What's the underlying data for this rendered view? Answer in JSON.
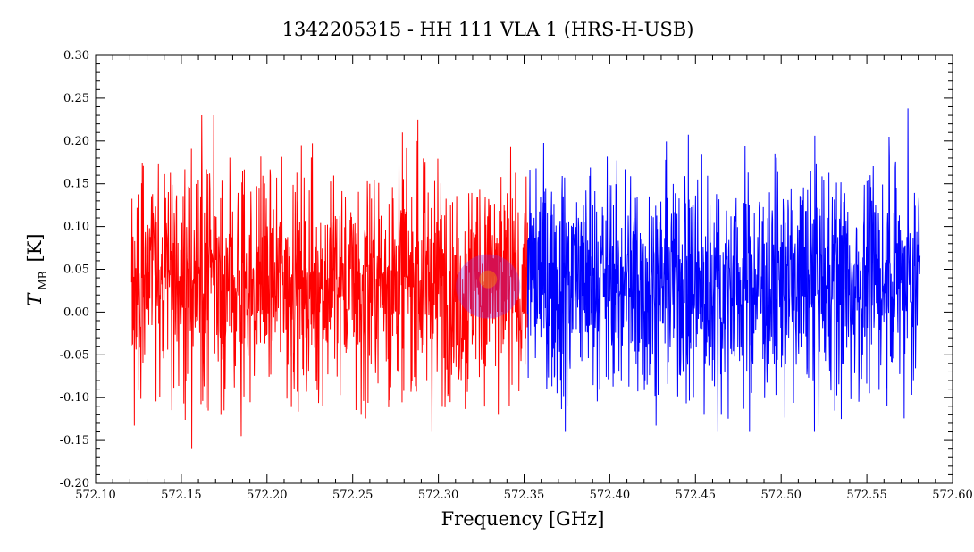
{
  "chart_data": {
    "type": "line",
    "title": "1342205315 - HH 111 VLA 1 (HRS-H-USB)",
    "xlabel": "Frequency [GHz]",
    "ylabel_main": "T",
    "ylabel_sub": "MB",
    "ylabel_unit": "[K]",
    "xlim": [
      572.1,
      572.6
    ],
    "ylim": [
      -0.2,
      0.3
    ],
    "x_ticks": [
      "572.10",
      "572.15",
      "572.20",
      "572.25",
      "572.30",
      "572.35",
      "572.40",
      "572.45",
      "572.50",
      "572.55",
      "572.60"
    ],
    "y_ticks": [
      "0.30",
      "0.25",
      "0.20",
      "0.15",
      "0.10",
      "0.05",
      "0.00",
      "-0.05",
      "-0.10",
      "-0.15",
      "-0.20"
    ],
    "grid": false,
    "series": [
      {
        "color": "#ff0000",
        "x_range": [
          572.121,
          572.352
        ],
        "noise_mean": 0.035,
        "noise_amplitude": 0.19,
        "peaks": [
          {
            "x": 572.162,
            "y": 0.23
          },
          {
            "x": 572.169,
            "y": 0.23
          },
          {
            "x": 572.288,
            "y": 0.225
          },
          {
            "x": 572.156,
            "y": -0.16
          },
          {
            "x": 572.185,
            "y": -0.145
          },
          {
            "x": 572.335,
            "y": -0.12
          },
          {
            "x": 572.255,
            "y": -0.12
          }
        ]
      },
      {
        "color": "#0000ff",
        "x_range": [
          572.352,
          572.581
        ],
        "noise_mean": 0.035,
        "noise_amplitude": 0.19,
        "peaks": [
          {
            "x": 572.574,
            "y": 0.238
          },
          {
            "x": 572.563,
            "y": 0.205
          },
          {
            "x": 572.374,
            "y": -0.14
          },
          {
            "x": 572.535,
            "y": -0.125
          },
          {
            "x": 572.465,
            "y": -0.12
          },
          {
            "x": 572.455,
            "y": -0.12
          }
        ]
      }
    ]
  },
  "watermark": {
    "icon": "hifi-logo-icon",
    "color": "#8a2be2"
  }
}
